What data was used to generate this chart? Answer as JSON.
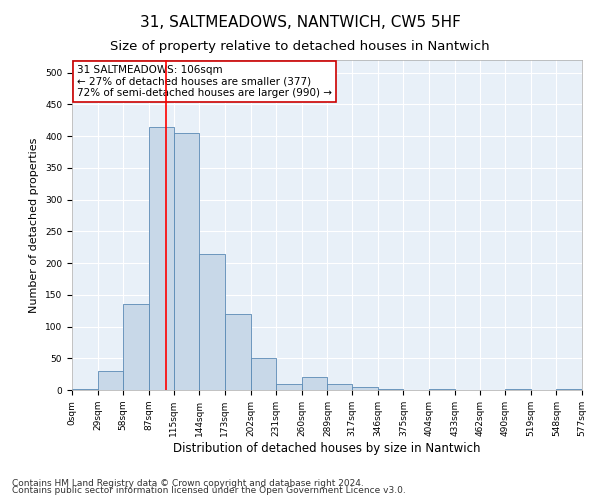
{
  "title": "31, SALTMEADOWS, NANTWICH, CW5 5HF",
  "subtitle": "Size of property relative to detached houses in Nantwich",
  "xlabel": "Distribution of detached houses by size in Nantwich",
  "ylabel": "Number of detached properties",
  "bin_edges": [
    0,
    29,
    58,
    87,
    115,
    144,
    173,
    202,
    231,
    260,
    289,
    317,
    346,
    375,
    404,
    433,
    462,
    490,
    519,
    548,
    577
  ],
  "bar_heights": [
    2,
    30,
    135,
    415,
    405,
    215,
    120,
    50,
    10,
    20,
    10,
    5,
    1,
    0,
    1,
    0,
    0,
    1,
    0,
    1
  ],
  "bar_color": "#c8d8e8",
  "bar_edge_color": "#5a8ab5",
  "red_line_x": 106,
  "ylim": [
    0,
    520
  ],
  "yticks": [
    0,
    50,
    100,
    150,
    200,
    250,
    300,
    350,
    400,
    450,
    500
  ],
  "annotation_text": "31 SALTMEADOWS: 106sqm\n← 27% of detached houses are smaller (377)\n72% of semi-detached houses are larger (990) →",
  "annotation_box_color": "#ffffff",
  "annotation_box_edgecolor": "#cc0000",
  "footer_line1": "Contains HM Land Registry data © Crown copyright and database right 2024.",
  "footer_line2": "Contains public sector information licensed under the Open Government Licence v3.0.",
  "tick_labels": [
    "0sqm",
    "29sqm",
    "58sqm",
    "87sqm",
    "115sqm",
    "144sqm",
    "173sqm",
    "202sqm",
    "231sqm",
    "260sqm",
    "289sqm",
    "317sqm",
    "346sqm",
    "375sqm",
    "404sqm",
    "433sqm",
    "462sqm",
    "490sqm",
    "519sqm",
    "548sqm",
    "577sqm"
  ],
  "background_color": "#e8f0f8",
  "grid_color": "#ffffff",
  "title_fontsize": 11,
  "subtitle_fontsize": 9.5,
  "xlabel_fontsize": 8.5,
  "ylabel_fontsize": 8,
  "tick_fontsize": 6.5,
  "annotation_fontsize": 7.5,
  "footer_fontsize": 6.5
}
